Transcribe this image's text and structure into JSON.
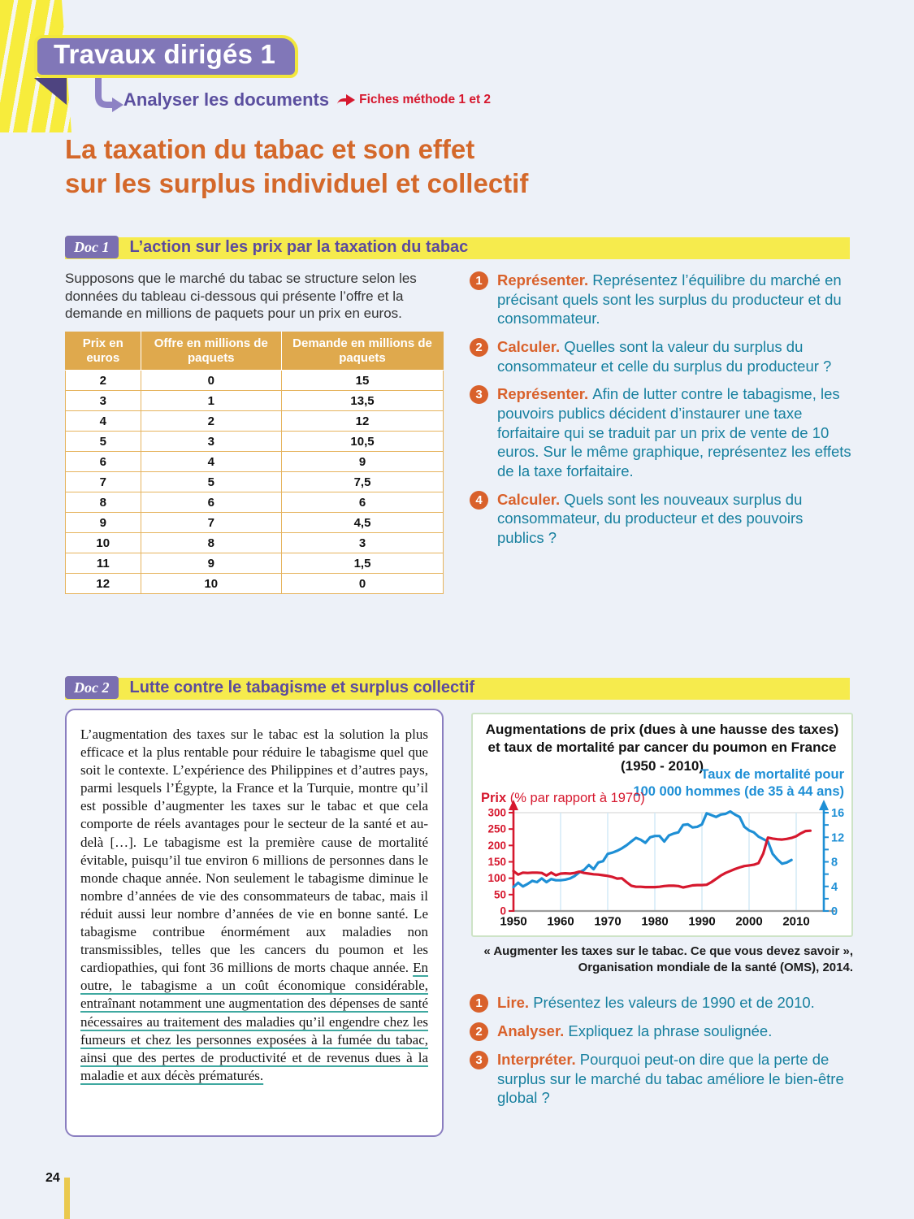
{
  "header": {
    "title": "Travaux dirigés 1",
    "subtitle": "Analyser les documents",
    "method_ref": "Fiches méthode 1 et 2"
  },
  "main_title": {
    "line1": "La taxation du tabac et son effet",
    "line2": "sur les surplus individuel et collectif"
  },
  "doc1": {
    "badge": "Doc 1",
    "title": "L’action sur les prix par la taxation du tabac",
    "intro": "Supposons que le marché du tabac se structure selon les données du tableau ci-dessous qui présente l’offre et la demande en millions de paquets pour un prix en euros.",
    "table": {
      "headers": [
        "Prix en euros",
        "Offre en millions de paquets",
        "Demande en millions de paquets"
      ],
      "rows": [
        [
          "2",
          "0",
          "15"
        ],
        [
          "3",
          "1",
          "13,5"
        ],
        [
          "4",
          "2",
          "12"
        ],
        [
          "5",
          "3",
          "10,5"
        ],
        [
          "6",
          "4",
          "9"
        ],
        [
          "7",
          "5",
          "7,5"
        ],
        [
          "8",
          "6",
          "6"
        ],
        [
          "9",
          "7",
          "4,5"
        ],
        [
          "10",
          "8",
          "3"
        ],
        [
          "11",
          "9",
          "1,5"
        ],
        [
          "12",
          "10",
          "0"
        ]
      ]
    },
    "questions": [
      {
        "num": "1",
        "verb": "Représenter.",
        "text": "Représentez l’équilibre du marché en précisant quels sont les surplus du producteur et du consommateur."
      },
      {
        "num": "2",
        "verb": "Calculer.",
        "text": "Quelles sont la valeur du surplus du consommateur et celle du surplus du producteur ?"
      },
      {
        "num": "3",
        "verb": "Représenter.",
        "text": "Afin de lutter contre le tabagisme, les pouvoirs publics décident d’instaurer une taxe forfaitaire qui se traduit par un prix de vente de 10 euros. Sur le même graphique, représentez les effets de la taxe forfaitaire."
      },
      {
        "num": "4",
        "verb": "Calculer.",
        "text": "Quels sont les nouveaux surplus du consommateur, du producteur et des pouvoirs publics ?"
      }
    ]
  },
  "doc2": {
    "badge": "Doc 2",
    "title": "Lutte contre le tabagisme et surplus collectif",
    "text_normal": "L’augmentation des taxes sur le tabac est la solution la plus efficace et la plus rentable pour réduire le tabagisme quel que soit le contexte. L’expérience des Philippines et d’autres pays, parmi lesquels l’Égypte, la France et la Turquie, montre qu’il est possible d’augmenter les taxes sur le tabac et que cela comporte de réels avantages pour le secteur de la santé et au-delà […]. Le tabagisme est la première cause de mortalité évitable, puisqu’il tue environ 6 millions de personnes dans le monde chaque année. Non seulement le tabagisme diminue le nombre d’années de vie des consommateurs de tabac, mais il réduit aussi leur nombre d’années de vie en bonne santé. Le tabagisme contribue énormément aux maladies non transmissibles, telles que les cancers du poumon et les cardiopathies, qui font 36 millions de morts chaque année. ",
    "text_underlined": "En outre, le tabagisme a un coût économique considérable, entraînant notamment une augmentation des dépenses de santé nécessaires au traitement des maladies qu’il engendre chez les fumeurs et chez les personnes exposées à la fumée du tabac, ainsi que des pertes de productivité et de revenus dues à la maladie et aux décès prématurés.",
    "questions": [
      {
        "num": "1",
        "verb": "Lire.",
        "text": "Présentez les valeurs de 1990 et de 2010."
      },
      {
        "num": "2",
        "verb": "Analyser.",
        "text": "Expliquez la phrase soulignée."
      },
      {
        "num": "3",
        "verb": "Interpréter.",
        "text": "Pourquoi peut-on dire que la perte de surplus sur le marché du tabac améliore le bien-être global ?"
      }
    ]
  },
  "chart_data": {
    "type": "line",
    "title": "Augmentations de prix (dues à une hausse des taxes) et taux de mortalité par cancer du poumon en France (1950 - 2010)",
    "title_lines": [
      "Augmentations de prix (dues à une hausse des taxes)",
      "et taux de mortalité par cancer du poumon en France",
      "(1950 - 2010)"
    ],
    "left_axis": {
      "label_bold": "Prix",
      "label_rest": " (% par rapport à 1970)",
      "ticks": [
        0,
        50,
        100,
        150,
        200,
        250,
        300
      ],
      "range": [
        0,
        300
      ],
      "color": "#d6182e"
    },
    "right_axis": {
      "label_lines": [
        "Taux de mortalité pour",
        "100 000 hommes (de 35 à 44 ans)"
      ],
      "ticks": [
        0,
        4,
        8,
        12,
        16
      ],
      "minor_tick_step": 2,
      "range": [
        0,
        16
      ],
      "color": "#1e8fd5"
    },
    "x_axis": {
      "ticks": [
        1950,
        1960,
        1970,
        1980,
        1990,
        2000,
        2010
      ],
      "range": [
        1950,
        2016
      ]
    },
    "grid": "vertical-decade-lines-plus-top-rule",
    "legend_position": "axis-labels",
    "series": [
      {
        "name": "Prix (% par rapport à 1970)",
        "axis": "left",
        "color": "#d6182e",
        "x": [
          1950,
          1951,
          1952,
          1953,
          1954,
          1955,
          1956,
          1957,
          1958,
          1959,
          1960,
          1961,
          1962,
          1963,
          1964,
          1965,
          1966,
          1967,
          1968,
          1969,
          1970,
          1971,
          1972,
          1973,
          1974,
          1975,
          1976,
          1977,
          1978,
          1979,
          1980,
          1981,
          1982,
          1983,
          1984,
          1985,
          1986,
          1987,
          1988,
          1989,
          1990,
          1991,
          1992,
          1993,
          1994,
          1995,
          1996,
          1997,
          1998,
          1999,
          2000,
          2001,
          2002,
          2003,
          2004,
          2005,
          2006,
          2007,
          2008,
          2009,
          2010,
          2011,
          2012,
          2013
        ],
        "y": [
          122,
          111,
          117,
          116,
          117,
          117,
          116,
          108,
          117,
          109,
          114,
          115,
          114,
          116,
          120,
          116,
          114,
          112,
          111,
          109,
          107,
          104,
          99,
          100,
          88,
          77,
          74,
          74,
          73,
          73,
          73,
          74,
          76,
          77,
          77,
          76,
          72,
          75,
          78,
          79,
          79,
          80,
          88,
          98,
          108,
          116,
          122,
          128,
          133,
          137,
          139,
          141,
          146,
          175,
          224,
          221,
          219,
          218,
          220,
          223,
          228,
          237,
          244,
          245
        ]
      },
      {
        "name": "Taux de mortalité pour 100 000 hommes (de 35 à 44 ans)",
        "axis": "right",
        "color": "#1e8fd5",
        "x": [
          1950,
          1951,
          1952,
          1953,
          1954,
          1955,
          1956,
          1957,
          1958,
          1959,
          1960,
          1961,
          1962,
          1963,
          1964,
          1965,
          1966,
          1967,
          1968,
          1969,
          1970,
          1971,
          1972,
          1973,
          1974,
          1975,
          1976,
          1977,
          1978,
          1979,
          1980,
          1981,
          1982,
          1983,
          1984,
          1985,
          1986,
          1987,
          1988,
          1989,
          1990,
          1991,
          1992,
          1993,
          1994,
          1995,
          1996,
          1997,
          1998,
          1999,
          2000,
          2001,
          2002,
          2003,
          2004,
          2005,
          2006,
          2007,
          2008,
          2009
        ],
        "y": [
          3.9,
          4.6,
          4.0,
          4.4,
          4.9,
          4.7,
          5.3,
          4.7,
          5.2,
          5.0,
          5.0,
          5.1,
          5.3,
          5.7,
          6.3,
          6.7,
          7.5,
          6.8,
          7.9,
          8.1,
          9.3,
          9.5,
          9.8,
          10.2,
          10.7,
          11.3,
          11.9,
          11.6,
          11.1,
          12.0,
          12.2,
          12.2,
          11.3,
          12.3,
          12.6,
          12.8,
          14.0,
          14.1,
          13.6,
          13.7,
          14.1,
          15.9,
          15.6,
          15.3,
          15.7,
          15.8,
          16.2,
          15.7,
          15.3,
          13.7,
          13.1,
          12.8,
          12.1,
          11.7,
          11.3,
          9.3,
          8.4,
          7.7,
          7.9,
          8.3
        ]
      }
    ],
    "source_lines": [
      "« Augmenter les taxes sur le tabac. Ce que vous devez savoir »,",
      "Organisation mondiale de la santé (OMS), 2014."
    ]
  },
  "footer": {
    "page_number": "24"
  }
}
